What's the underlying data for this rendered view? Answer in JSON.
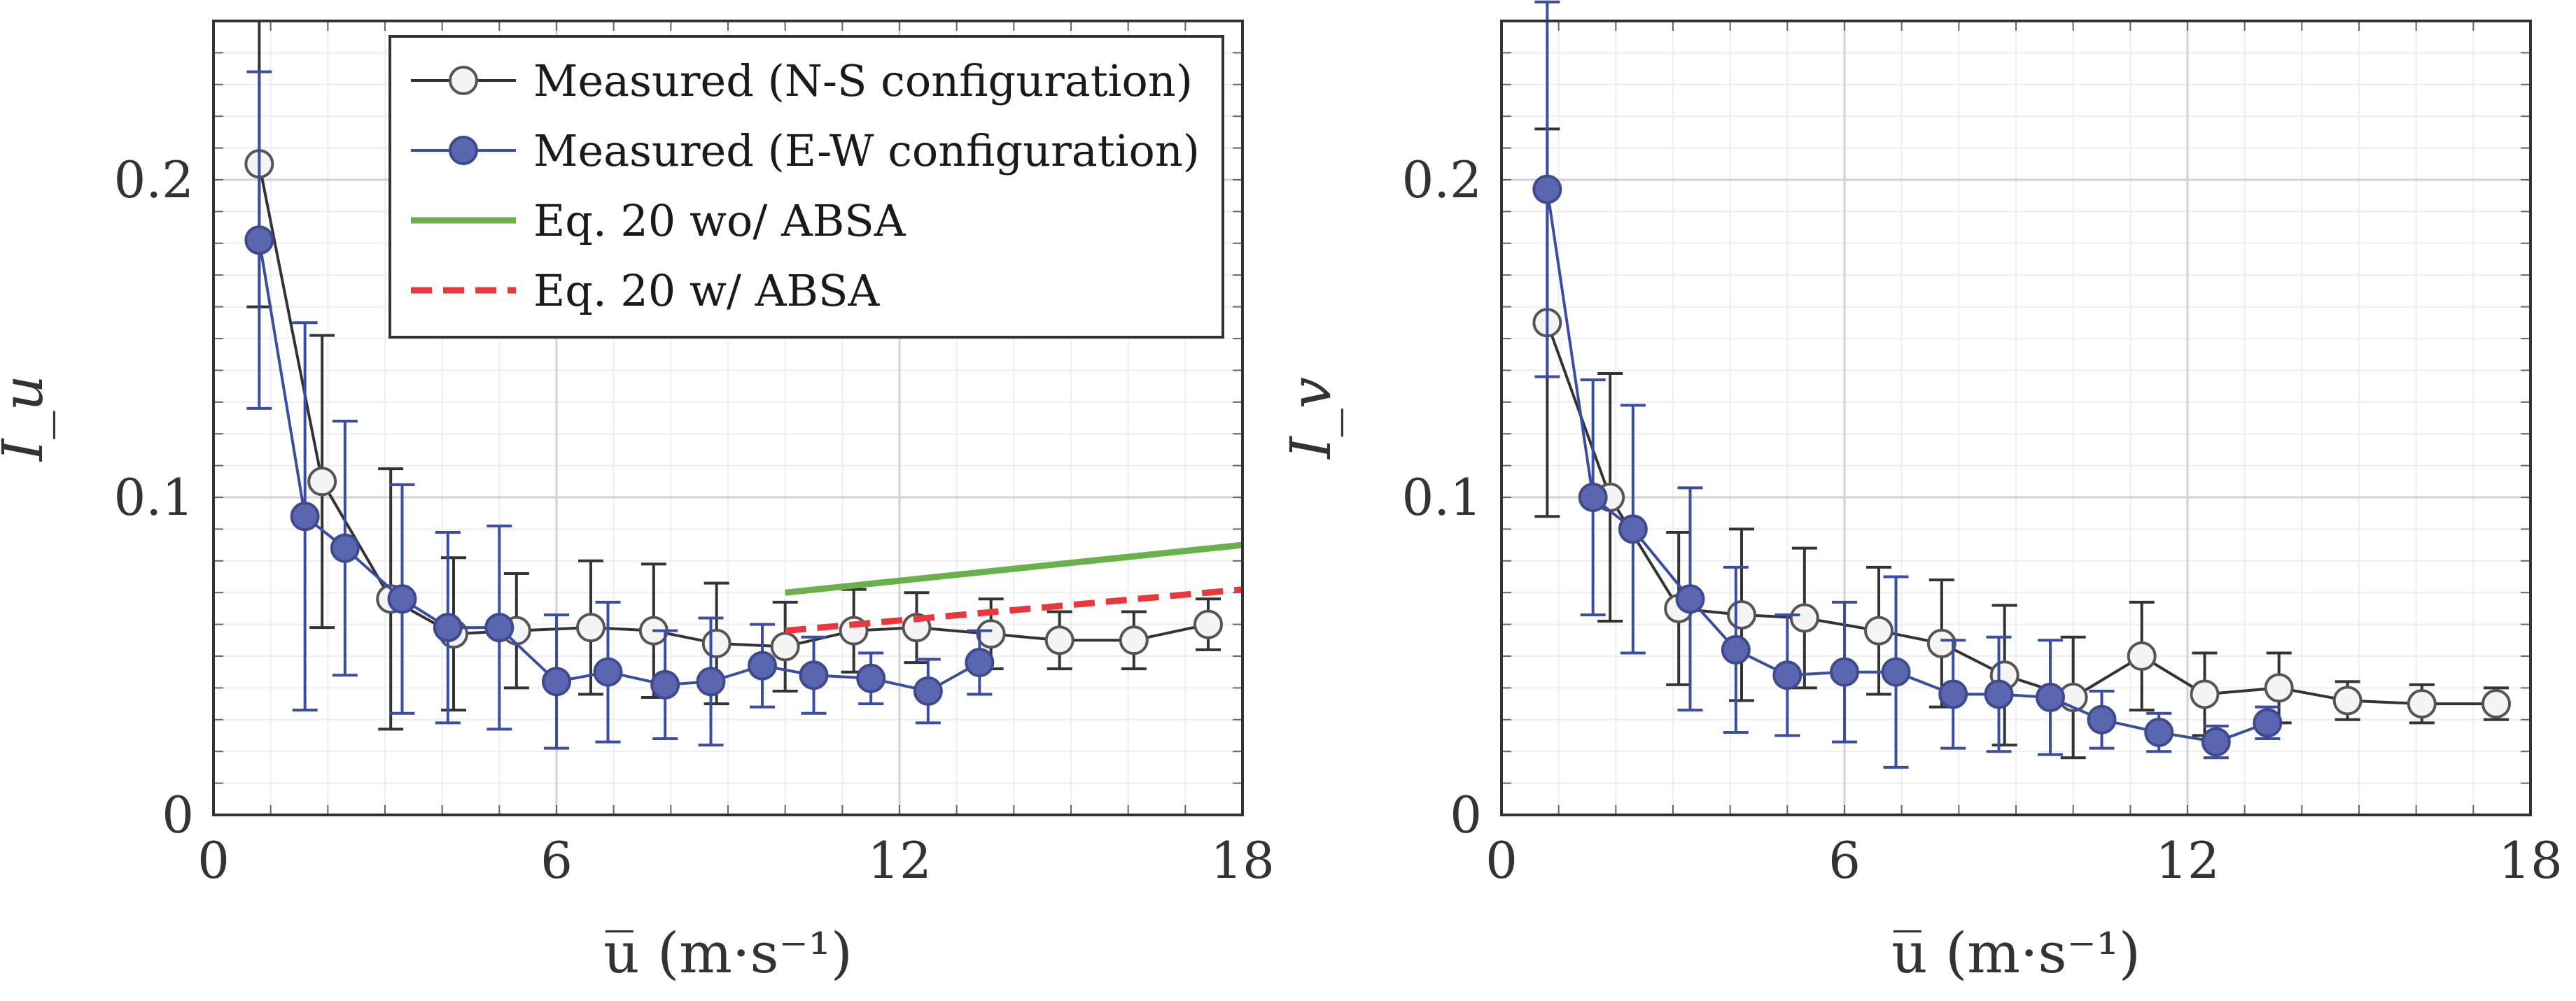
{
  "chart_data": [
    {
      "type": "line",
      "ylabel": "I_u",
      "xlabel": "u̅ (m·s⁻¹)",
      "xlim": [
        0,
        18
      ],
      "ylim": [
        0,
        0.25
      ],
      "xticks": [
        "0",
        "6",
        "12",
        "18"
      ],
      "yticks": [
        "0",
        "0.1",
        "0.2"
      ],
      "grid": true,
      "legend_position": "top-right",
      "series": [
        {
          "name": "Measured (N-S configuration)",
          "color": "#333333",
          "marker": "open-circle",
          "x": [
            0.8,
            1.9,
            3.1,
            4.2,
            5.3,
            6.6,
            7.7,
            8.8,
            10.0,
            11.2,
            12.3,
            13.6,
            14.8,
            16.1,
            17.4
          ],
          "y": [
            0.205,
            0.105,
            0.068,
            0.057,
            0.058,
            0.059,
            0.058,
            0.054,
            0.053,
            0.058,
            0.059,
            0.057,
            0.055,
            0.055,
            0.06
          ],
          "err": [
            0.045,
            0.046,
            0.041,
            0.024,
            0.018,
            0.021,
            0.021,
            0.019,
            0.014,
            0.013,
            0.011,
            0.011,
            0.009,
            0.009,
            0.008
          ]
        },
        {
          "name": "Measured (E-W configuration)",
          "color": "#3b4da0",
          "fill": "#5a66b0",
          "marker": "filled-circle",
          "x": [
            0.8,
            1.6,
            2.3,
            3.3,
            4.1,
            5.0,
            6.0,
            6.9,
            7.9,
            8.7,
            9.6,
            10.5,
            11.5,
            12.5,
            13.4
          ],
          "y": [
            0.181,
            0.094,
            0.084,
            0.068,
            0.059,
            0.059,
            0.042,
            0.045,
            0.041,
            0.042,
            0.047,
            0.044,
            0.043,
            0.039,
            0.048
          ],
          "err": [
            0.053,
            0.061,
            0.04,
            0.036,
            0.03,
            0.032,
            0.021,
            0.022,
            0.017,
            0.02,
            0.013,
            0.012,
            0.008,
            0.01,
            0.01
          ]
        },
        {
          "name": "Eq. 20 wo/ ABSA",
          "color": "#6ab04c",
          "style": "solid",
          "x": [
            10.0,
            18.0
          ],
          "y": [
            0.07,
            0.085
          ]
        },
        {
          "name": "Eq. 20 w/ ABSA",
          "color": "#e8383d",
          "style": "dashed",
          "x": [
            10.0,
            18.0
          ],
          "y": [
            0.058,
            0.071
          ]
        }
      ]
    },
    {
      "type": "line",
      "ylabel": "I_v",
      "xlabel": "u̅ (m·s⁻¹)",
      "xlim": [
        0,
        18
      ],
      "ylim": [
        0,
        0.25
      ],
      "xticks": [
        "0",
        "6",
        "12",
        "18"
      ],
      "yticks": [
        "0",
        "0.1",
        "0.2"
      ],
      "grid": true,
      "series": [
        {
          "name": "Measured (N-S configuration)",
          "color": "#333333",
          "marker": "open-circle",
          "x": [
            0.8,
            1.9,
            3.1,
            4.2,
            5.3,
            6.6,
            7.7,
            8.8,
            10.0,
            11.2,
            12.3,
            13.6,
            14.8,
            16.1,
            17.4
          ],
          "y": [
            0.155,
            0.1,
            0.065,
            0.063,
            0.062,
            0.058,
            0.054,
            0.044,
            0.037,
            0.05,
            0.038,
            0.04,
            0.036,
            0.035,
            0.035
          ],
          "err": [
            0.061,
            0.039,
            0.024,
            0.027,
            0.022,
            0.02,
            0.02,
            0.022,
            0.019,
            0.017,
            0.013,
            0.011,
            0.006,
            0.006,
            0.005
          ]
        },
        {
          "name": "Measured (E-W configuration)",
          "color": "#3b4da0",
          "fill": "#5a66b0",
          "marker": "filled-circle",
          "x": [
            0.8,
            1.6,
            2.3,
            3.3,
            4.1,
            5.0,
            6.0,
            6.9,
            7.9,
            8.7,
            9.6,
            10.5,
            11.5,
            12.5,
            13.4
          ],
          "y": [
            0.197,
            0.1,
            0.09,
            0.068,
            0.052,
            0.044,
            0.045,
            0.045,
            0.038,
            0.038,
            0.037,
            0.03,
            0.026,
            0.023,
            0.029
          ],
          "err": [
            0.059,
            0.037,
            0.039,
            0.035,
            0.026,
            0.019,
            0.022,
            0.03,
            0.017,
            0.018,
            0.018,
            0.009,
            0.006,
            0.005,
            0.005
          ]
        }
      ]
    }
  ]
}
